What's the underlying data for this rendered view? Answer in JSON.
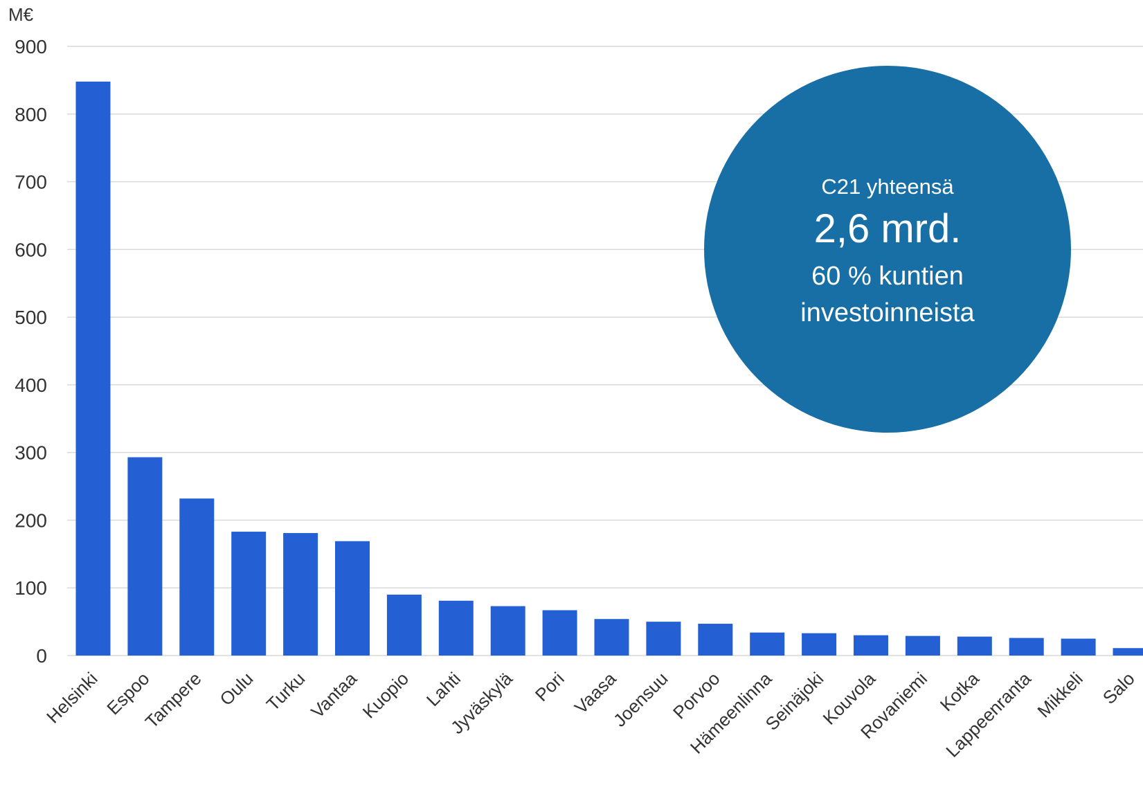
{
  "chart_data": {
    "type": "bar",
    "ylabel": "M€",
    "ylim": [
      0,
      900
    ],
    "yticks": [
      0,
      100,
      200,
      300,
      400,
      500,
      600,
      700,
      800,
      900
    ],
    "grid": true,
    "categories": [
      "Helsinki",
      "Espoo",
      "Tampere",
      "Oulu",
      "Turku",
      "Vantaa",
      "Kuopio",
      "Lahti",
      "Jyväskylä",
      "Pori",
      "Vaasa",
      "Joensuu",
      "Porvoo",
      "Hämeenlinna",
      "Seinäjoki",
      "Kouvola",
      "Rovaniemi",
      "Kotka",
      "Lappeenranta",
      "Mikkeli",
      "Salo"
    ],
    "values": [
      848,
      293,
      232,
      183,
      181,
      169,
      90,
      81,
      73,
      67,
      54,
      50,
      47,
      34,
      33,
      30,
      29,
      28,
      26,
      25,
      11
    ]
  },
  "colors": {
    "bar": "#2460d3",
    "callout_bg": "#176fa5",
    "grid": "#d9d9d9",
    "text": "#333333",
    "callout_text": "#ffffff"
  },
  "callout": {
    "line1": "C21 yhteensä",
    "line2": "2,6 mrd.",
    "line3": "60 % kuntien",
    "line4": "investoinneista"
  }
}
